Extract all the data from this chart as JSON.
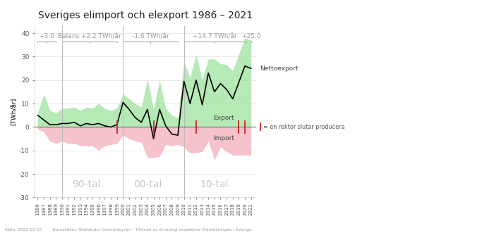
{
  "title": "Sveriges elimport och elexport 1986 – 2021",
  "ylabel": "[TWh/år]",
  "years": [
    1986,
    1987,
    1988,
    1989,
    1990,
    1991,
    1992,
    1993,
    1994,
    1995,
    1996,
    1997,
    1998,
    1999,
    2000,
    2001,
    2002,
    2003,
    2004,
    2005,
    2006,
    2007,
    2008,
    2009,
    2010,
    2011,
    2012,
    2013,
    2014,
    2015,
    2016,
    2017,
    2018,
    2019,
    2020,
    2021
  ],
  "net_export": [
    5.0,
    3.0,
    1.0,
    1.0,
    1.5,
    1.5,
    2.0,
    0.5,
    1.5,
    1.0,
    1.5,
    0.5,
    0.0,
    1.0,
    10.5,
    7.5,
    4.0,
    2.0,
    7.5,
    -5.0,
    7.5,
    0.5,
    -3.0,
    -3.5,
    19.5,
    10.0,
    20.0,
    9.5,
    23.0,
    15.0,
    18.5,
    16.0,
    12.0,
    19.0,
    26.0,
    25.0
  ],
  "export_upper": [
    6.0,
    14.0,
    7.0,
    6.0,
    8.0,
    8.0,
    8.5,
    7.0,
    8.5,
    8.0,
    10.0,
    8.0,
    7.0,
    8.0,
    14.0,
    12.0,
    10.0,
    8.5,
    20.5,
    7.5,
    20.0,
    8.0,
    5.0,
    4.0,
    28.0,
    21.0,
    31.0,
    20.0,
    29.0,
    29.0,
    27.0,
    26.5,
    24.0,
    31.0,
    38.0,
    37.0
  ],
  "import_lower": [
    -1.0,
    -2.0,
    -6.0,
    -7.0,
    -6.0,
    -7.0,
    -7.0,
    -8.0,
    -8.0,
    -8.0,
    -10.0,
    -8.0,
    -7.5,
    -7.0,
    -3.5,
    -5.0,
    -6.0,
    -6.5,
    -13.0,
    -13.0,
    -12.5,
    -7.5,
    -8.0,
    -7.5,
    -8.5,
    -11.0,
    -11.0,
    -10.5,
    -6.0,
    -14.0,
    -8.5,
    -10.5,
    -12.0,
    -12.0,
    -12.0,
    -12.0
  ],
  "reactor_years": [
    1999,
    2005,
    2012,
    2019,
    2020
  ],
  "period_lines": [
    1990,
    2000,
    2010
  ],
  "period_labels": [
    {
      "x": 1994,
      "label": "90-tal"
    },
    {
      "x": 2004,
      "label": "00-tal"
    },
    {
      "x": 2015,
      "label": "10-tal"
    }
  ],
  "export_color": "#a8e6a8",
  "import_color": "#f5b8c4",
  "net_line_color": "#000000",
  "reactor_line_color": "#cc2222",
  "period_line_color": "#bbbbbb",
  "annotation_color": "#999999",
  "decade_label_color": "#c8c8c8",
  "ylim": [
    -30,
    43
  ],
  "xlim_left": 1985.5,
  "xlim_right": 2021.8,
  "source_text": "Källa: 2022-02-10        Dataskällor: Statistiska Centralsbyrån – Tillörsel av el-energi respektive Eländröningen i Sverige"
}
